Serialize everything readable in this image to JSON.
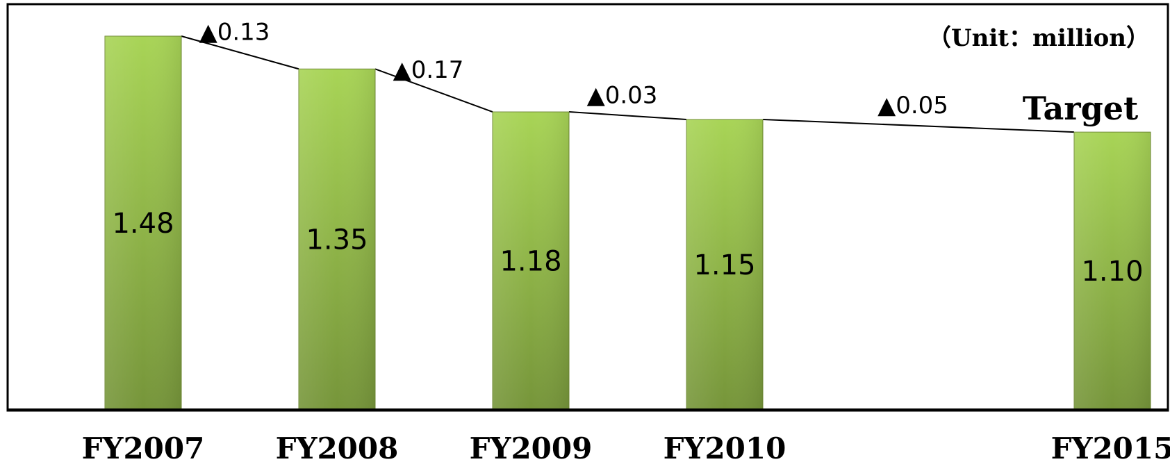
{
  "chart_data": {
    "type": "bar",
    "categories": [
      "FY2007",
      "FY2008",
      "FY2009",
      "FY2010",
      "FY2015"
    ],
    "values": [
      1.48,
      1.35,
      1.18,
      1.15,
      1.1
    ],
    "value_labels": [
      "1.48",
      "1.35",
      "1.18",
      "1.15",
      "1.10"
    ],
    "differences": [
      "▲0.13",
      "▲0.17",
      "▲0.03",
      "▲0.05"
    ],
    "unit_label": "（Unit：million）",
    "target_label": "Target",
    "title": "",
    "xlabel": "",
    "ylabel": "",
    "ylim": [
      0,
      1.6
    ],
    "grid": false,
    "legend": "none",
    "colors": {
      "bar_top": "#a8d456",
      "bar_bottom": "#76953a",
      "frame": "#000000",
      "connector": "#000000"
    }
  }
}
